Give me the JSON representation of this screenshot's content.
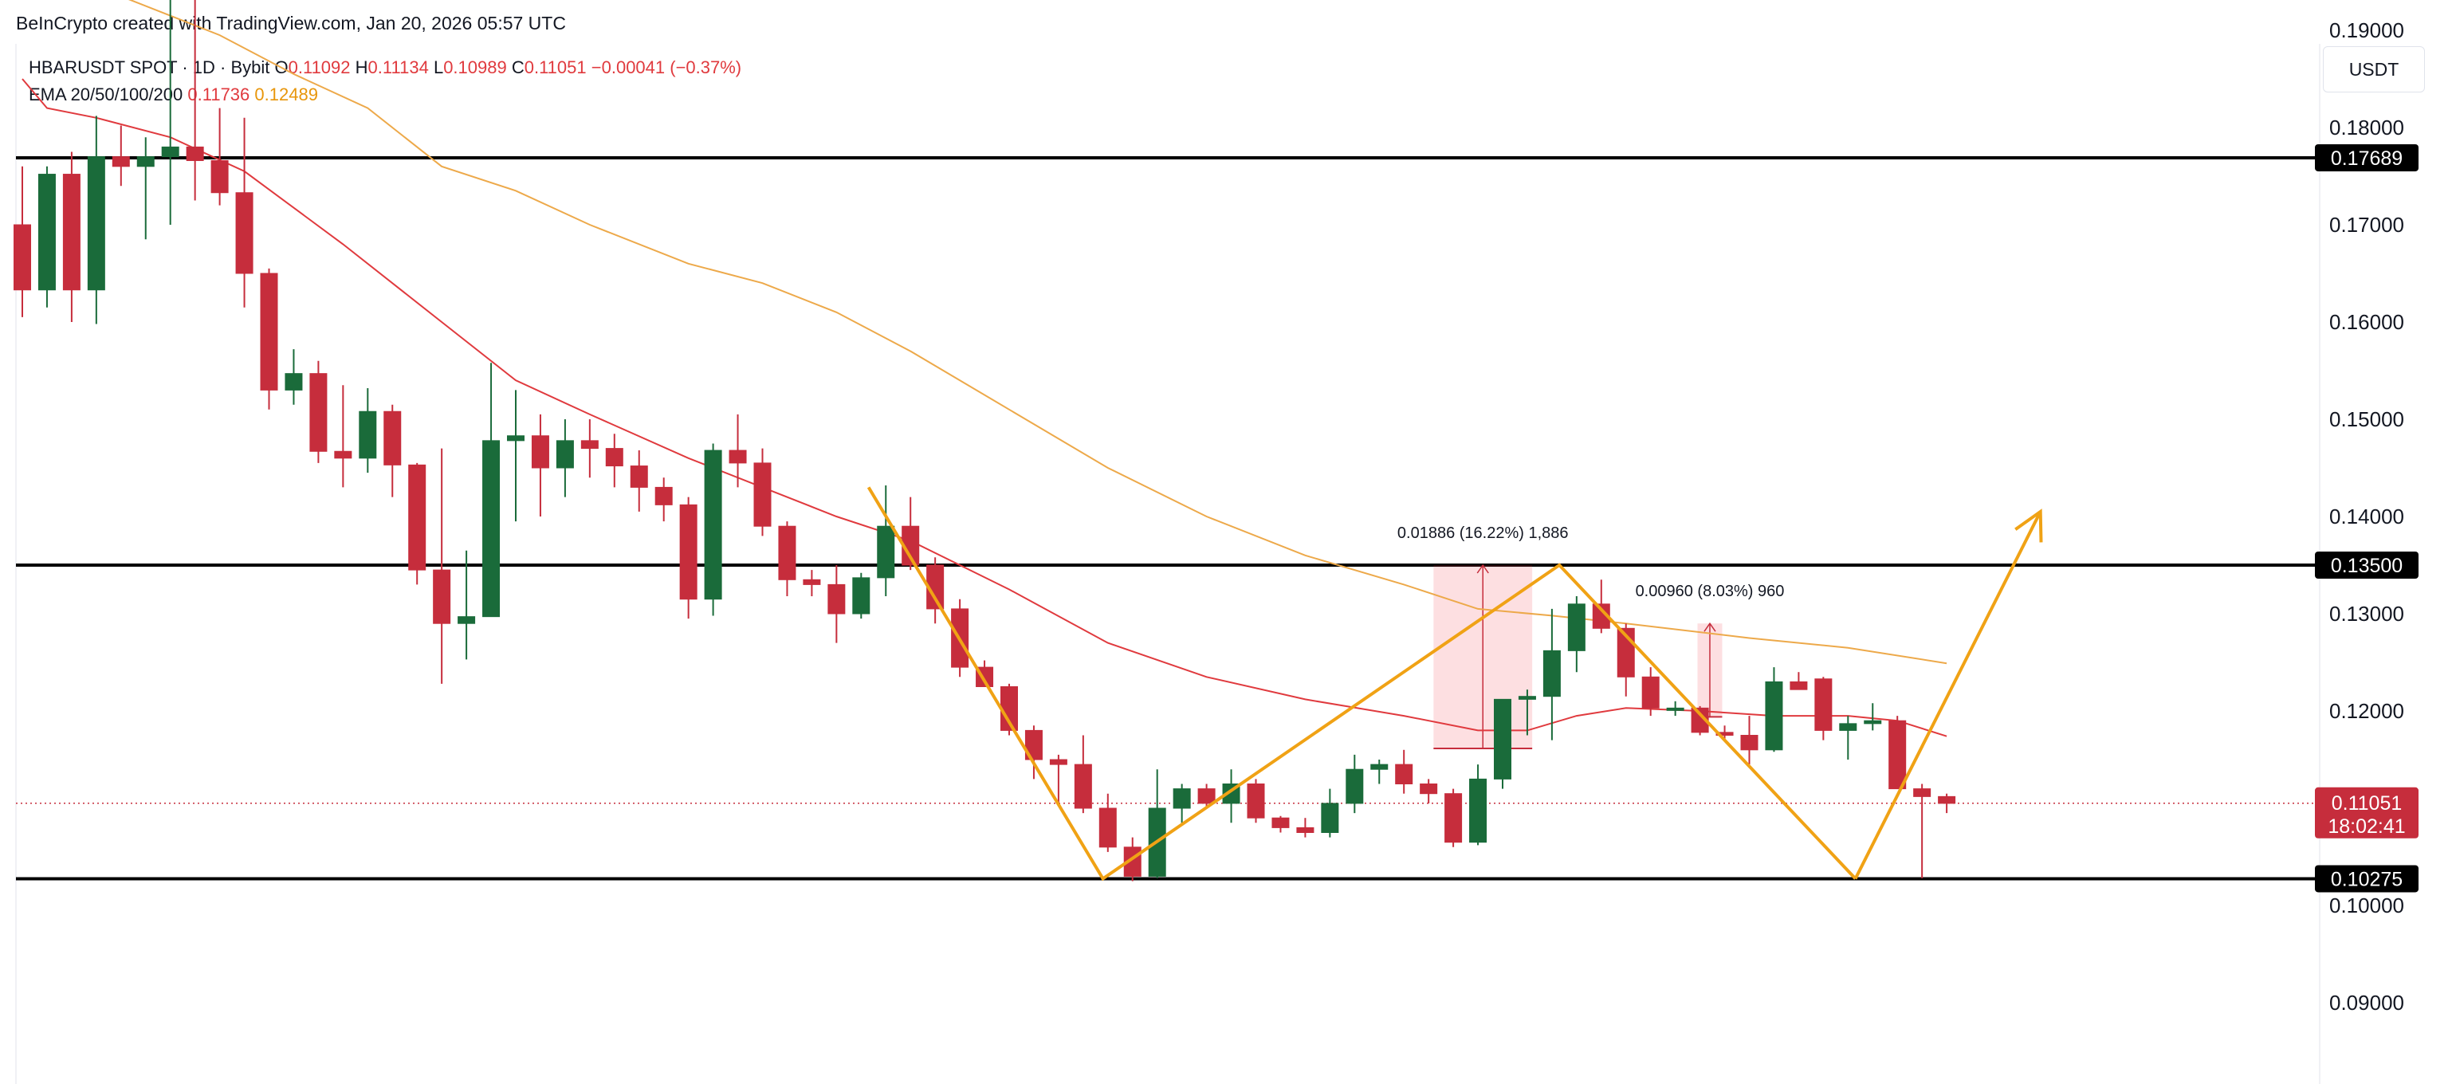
{
  "attribution": "BeInCrypto created with TradingView.com, Jan 20, 2026 05:57 UTC",
  "legend": {
    "symbol": "HBARUSDT SPOT · 1D · Bybit",
    "o_label": "O",
    "o_value": "0.11092",
    "h_label": "H",
    "h_value": "0.11134",
    "l_label": "L",
    "l_value": "0.10989",
    "c_label": "C",
    "c_value": "0.11051",
    "change": "−0.00041 (−0.37%)",
    "ema_label": "EMA 20/50/100/200",
    "ema_20_value": "0.11736",
    "ema_50_value": "0.12489"
  },
  "unit_button": "USDT",
  "colors": {
    "up": "#1a6b3a",
    "down": "#c62d3c",
    "ema20": "#e03a3e",
    "ema50": "#eda94a",
    "pattern": "#f0a215",
    "level": "#000000",
    "price_badge": "#c62d3c"
  },
  "chart_data": {
    "type": "candlestick",
    "timeframe": "1D",
    "ylim": [
      0.0875,
      0.2005
    ],
    "y_ticks": [
      "0.19000",
      "0.18000",
      "0.17000",
      "0.16000",
      "0.15000",
      "0.14000",
      "0.13000",
      "0.12000",
      "0.10000",
      "0.09000"
    ],
    "candles": [
      [
        0.17,
        0.176,
        0.1605,
        0.1633
      ],
      [
        0.1633,
        0.176,
        0.1615,
        0.1752
      ],
      [
        0.1752,
        0.1775,
        0.16,
        0.1633
      ],
      [
        0.1633,
        0.1812,
        0.1598,
        0.177
      ],
      [
        0.177,
        0.1802,
        0.174,
        0.176
      ],
      [
        0.176,
        0.179,
        0.1685,
        0.177
      ],
      [
        0.177,
        0.201,
        0.17,
        0.178
      ],
      [
        0.178,
        0.201,
        0.1725,
        0.1766
      ],
      [
        0.1766,
        0.182,
        0.172,
        0.1733
      ],
      [
        0.1733,
        0.181,
        0.1615,
        0.165
      ],
      [
        0.165,
        0.1655,
        0.151,
        0.153
      ],
      [
        0.153,
        0.1572,
        0.1515,
        0.1547
      ],
      [
        0.1547,
        0.156,
        0.1455,
        0.1467
      ],
      [
        0.1467,
        0.1535,
        0.143,
        0.146
      ],
      [
        0.146,
        0.1532,
        0.1445,
        0.1508
      ],
      [
        0.1508,
        0.1515,
        0.142,
        0.1453
      ],
      [
        0.1453,
        0.1455,
        0.133,
        0.1345
      ],
      [
        0.1345,
        0.147,
        0.1228,
        0.129
      ],
      [
        0.129,
        0.1365,
        0.1253,
        0.1297
      ],
      [
        0.1297,
        0.1558,
        0.13,
        0.1478
      ],
      [
        0.1478,
        0.153,
        0.1395,
        0.1483
      ],
      [
        0.1483,
        0.1505,
        0.14,
        0.145
      ],
      [
        0.145,
        0.15,
        0.142,
        0.1478
      ],
      [
        0.1478,
        0.15,
        0.144,
        0.147
      ],
      [
        0.147,
        0.1485,
        0.143,
        0.1452
      ],
      [
        0.1452,
        0.1468,
        0.1405,
        0.143
      ],
      [
        0.143,
        0.144,
        0.1395,
        0.1412
      ],
      [
        0.1412,
        0.142,
        0.1295,
        0.1315
      ],
      [
        0.1315,
        0.1475,
        0.1298,
        0.1468
      ],
      [
        0.1468,
        0.1505,
        0.143,
        0.1455
      ],
      [
        0.1455,
        0.147,
        0.138,
        0.139
      ],
      [
        0.139,
        0.1395,
        0.1318,
        0.1335
      ],
      [
        0.1335,
        0.1345,
        0.1318,
        0.133
      ],
      [
        0.133,
        0.135,
        0.127,
        0.13
      ],
      [
        0.13,
        0.1342,
        0.1295,
        0.1337
      ],
      [
        0.1337,
        0.1432,
        0.1318,
        0.139
      ],
      [
        0.139,
        0.142,
        0.1345,
        0.135
      ],
      [
        0.135,
        0.1358,
        0.129,
        0.1305
      ],
      [
        0.1305,
        0.1315,
        0.1235,
        0.1245
      ],
      [
        0.1245,
        0.1252,
        0.1225,
        0.1225
      ],
      [
        0.1225,
        0.1228,
        0.1175,
        0.118
      ],
      [
        0.118,
        0.1185,
        0.113,
        0.115
      ],
      [
        0.115,
        0.1155,
        0.1105,
        0.1145
      ],
      [
        0.1145,
        0.1175,
        0.1095,
        0.11
      ],
      [
        0.11,
        0.1115,
        0.1055,
        0.106
      ],
      [
        0.106,
        0.107,
        0.1025,
        0.103
      ],
      [
        0.103,
        0.114,
        0.1028,
        0.11
      ],
      [
        0.11,
        0.1125,
        0.1085,
        0.112
      ],
      [
        0.112,
        0.1125,
        0.11,
        0.1105
      ],
      [
        0.1105,
        0.114,
        0.1085,
        0.1125
      ],
      [
        0.1125,
        0.113,
        0.1085,
        0.109
      ],
      [
        0.109,
        0.1092,
        0.1075,
        0.108
      ],
      [
        0.108,
        0.109,
        0.107,
        0.1075
      ],
      [
        0.1075,
        0.112,
        0.107,
        0.1105
      ],
      [
        0.1105,
        0.1155,
        0.1095,
        0.114
      ],
      [
        0.114,
        0.115,
        0.1125,
        0.1145
      ],
      [
        0.1145,
        0.116,
        0.1115,
        0.1125
      ],
      [
        0.1125,
        0.113,
        0.1105,
        0.1115
      ],
      [
        0.1115,
        0.112,
        0.106,
        0.1065
      ],
      [
        0.1065,
        0.1145,
        0.1062,
        0.113
      ],
      [
        0.113,
        0.1212,
        0.112,
        0.1212
      ],
      [
        0.1212,
        0.1222,
        0.1175,
        0.1215
      ],
      [
        0.1215,
        0.1305,
        0.117,
        0.1262
      ],
      [
        0.1262,
        0.1318,
        0.124,
        0.131
      ],
      [
        0.131,
        0.1335,
        0.128,
        0.1285
      ],
      [
        0.1285,
        0.129,
        0.1215,
        0.1235
      ],
      [
        0.1235,
        0.1245,
        0.1195,
        0.1203
      ],
      [
        0.1203,
        0.121,
        0.1195,
        0.1203
      ],
      [
        0.1203,
        0.1205,
        0.1175,
        0.1178
      ],
      [
        0.1178,
        0.1185,
        0.117,
        0.1175
      ],
      [
        0.1175,
        0.1195,
        0.1145,
        0.116
      ],
      [
        0.116,
        0.1245,
        0.1158,
        0.123
      ],
      [
        0.123,
        0.124,
        0.1225,
        0.1222
      ],
      [
        0.1233,
        0.1235,
        0.117,
        0.118
      ],
      [
        0.118,
        0.1195,
        0.115,
        0.1187
      ],
      [
        0.1187,
        0.1208,
        0.118,
        0.119
      ],
      [
        0.119,
        0.1195,
        0.112,
        0.112
      ],
      [
        0.112,
        0.1125,
        0.1028,
        0.1112
      ],
      [
        0.1112,
        0.1115,
        0.1095,
        0.1105
      ]
    ],
    "ema_20": [
      [
        0,
        0.185
      ],
      [
        1,
        0.182
      ],
      [
        3,
        0.181
      ],
      [
        6,
        0.179
      ],
      [
        9,
        0.1755
      ],
      [
        13,
        0.168
      ],
      [
        17,
        0.16
      ],
      [
        20,
        0.154
      ],
      [
        23,
        0.1505
      ],
      [
        27,
        0.146
      ],
      [
        30,
        0.143
      ],
      [
        33,
        0.14
      ],
      [
        36,
        0.1375
      ],
      [
        40,
        0.1325
      ],
      [
        44,
        0.127
      ],
      [
        48,
        0.1235
      ],
      [
        52,
        0.1212
      ],
      [
        56,
        0.1195
      ],
      [
        59,
        0.118
      ],
      [
        61,
        0.118
      ],
      [
        63,
        0.1195
      ],
      [
        65,
        0.1203
      ],
      [
        68,
        0.12
      ],
      [
        71,
        0.1195
      ],
      [
        74,
        0.1195
      ],
      [
        76,
        0.119
      ],
      [
        78,
        0.1174
      ]
    ],
    "ema_50": [
      [
        0,
        0.1955
      ],
      [
        3,
        0.1945
      ],
      [
        8,
        0.1895
      ],
      [
        11,
        0.1855
      ],
      [
        14,
        0.182
      ],
      [
        17,
        0.176
      ],
      [
        20,
        0.1735
      ],
      [
        23,
        0.17
      ],
      [
        27,
        0.166
      ],
      [
        30,
        0.164
      ],
      [
        33,
        0.161
      ],
      [
        36,
        0.157
      ],
      [
        40,
        0.151
      ],
      [
        44,
        0.145
      ],
      [
        48,
        0.14
      ],
      [
        52,
        0.136
      ],
      [
        56,
        0.133
      ],
      [
        59,
        0.1305
      ],
      [
        62,
        0.1298
      ],
      [
        65,
        0.129
      ],
      [
        70,
        0.1275
      ],
      [
        74,
        0.1265
      ],
      [
        78,
        0.1249
      ]
    ],
    "levels": [
      {
        "price": 0.17689,
        "label": "0.17689"
      },
      {
        "price": 0.135,
        "label": "0.13500"
      },
      {
        "price": 0.10275,
        "label": "0.10275"
      }
    ],
    "last_price": {
      "price": 0.11051,
      "label": "0.11051",
      "countdown": "18:02:41"
    },
    "pattern": {
      "points": [
        [
          34.3,
          0.143
        ],
        [
          43.8,
          0.10275
        ],
        [
          62.3,
          0.135
        ],
        [
          74.3,
          0.10275
        ]
      ],
      "projection": [
        [
          74.3,
          0.10275
        ],
        [
          81.8,
          0.1405
        ]
      ]
    },
    "measures": [
      {
        "i_start": 57.2,
        "i_end": 61.2,
        "bottom": 0.11615,
        "top": 0.135,
        "label": "0.01886 (16.22%) 1,886"
      },
      {
        "i_start": 67.9,
        "i_end": 68.9,
        "bottom": 0.1194,
        "top": 0.129,
        "label": "0.00960 (8.03%) 960"
      }
    ]
  }
}
